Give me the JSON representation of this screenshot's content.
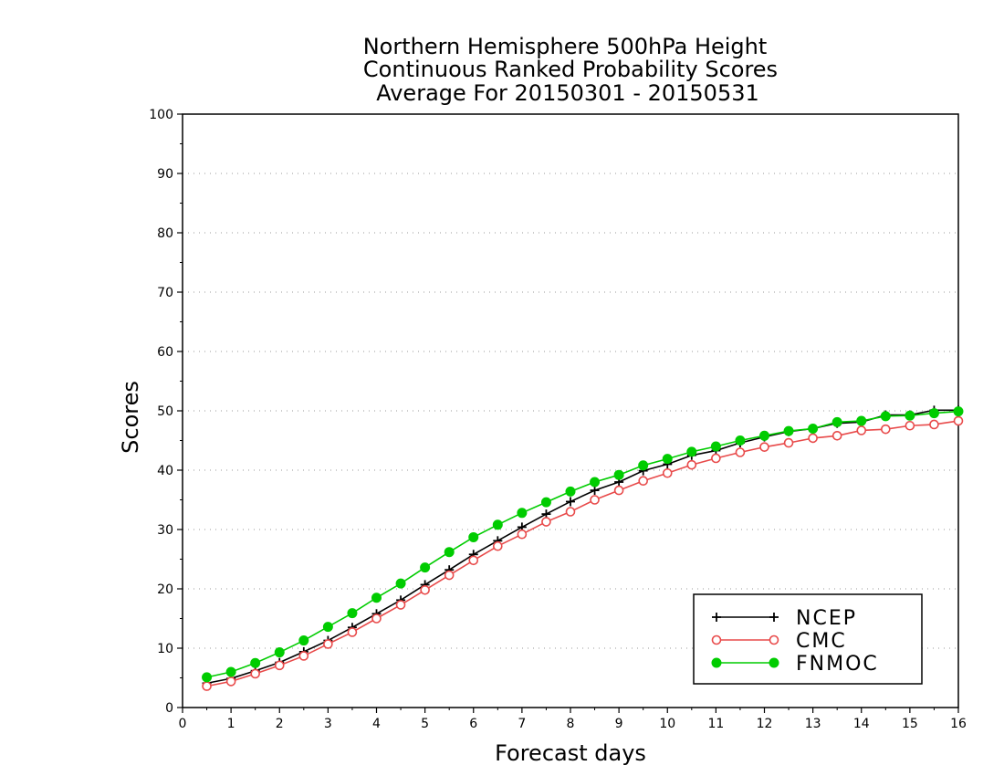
{
  "chart_data": {
    "type": "line",
    "title": [
      "Northern Hemisphere 500hPa Height",
      "Continuous Ranked Probability Scores",
      "Average For 20150301 - 20150531"
    ],
    "xlabel": "Forecast days",
    "ylabel": "Scores",
    "xlim": [
      0,
      16
    ],
    "ylim": [
      0,
      100
    ],
    "xticks": [
      "0",
      "1",
      "2",
      "3",
      "4",
      "5",
      "6",
      "7",
      "8",
      "9",
      "10",
      "11",
      "12",
      "13",
      "14",
      "15",
      "16"
    ],
    "yticks": [
      "0",
      "10",
      "20",
      "30",
      "40",
      "50",
      "60",
      "70",
      "80",
      "90",
      "100"
    ],
    "grid": true,
    "legend_position": "bottom-right",
    "x": [
      0.5,
      1,
      1.5,
      2,
      2.5,
      3,
      3.5,
      4,
      4.5,
      5,
      5.5,
      6,
      6.5,
      7,
      7.5,
      8,
      8.5,
      9,
      9.5,
      10,
      10.5,
      11,
      11.5,
      12,
      12.5,
      13,
      13.5,
      14,
      14.5,
      15,
      15.5,
      16
    ],
    "series": [
      {
        "name": "NCEP",
        "color": "#000000",
        "marker": "plus",
        "values": [
          4.1,
          4.9,
          6.2,
          7.6,
          9.4,
          11.3,
          13.5,
          15.8,
          18.1,
          20.7,
          23.2,
          25.8,
          28.1,
          30.4,
          32.6,
          34.7,
          36.6,
          38.0,
          39.9,
          41.0,
          42.5,
          43.3,
          44.6,
          45.6,
          46.5,
          47.0,
          47.9,
          48.1,
          49.3,
          49.3,
          50.1,
          50.1
        ]
      },
      {
        "name": "CMC",
        "color": "#e84a4a",
        "marker": "open-circle",
        "values": [
          3.6,
          4.4,
          5.7,
          7.1,
          8.7,
          10.7,
          12.7,
          15.0,
          17.3,
          19.8,
          22.3,
          24.8,
          27.2,
          29.2,
          31.3,
          33.0,
          35.0,
          36.6,
          38.2,
          39.5,
          40.9,
          42.0,
          43.0,
          43.9,
          44.6,
          45.4,
          45.8,
          46.7,
          46.9,
          47.5,
          47.7,
          48.3
        ]
      },
      {
        "name": "FNMOC",
        "color": "#00cc00",
        "marker": "filled-circle",
        "values": [
          5.1,
          6.0,
          7.5,
          9.3,
          11.3,
          13.6,
          15.9,
          18.5,
          20.9,
          23.6,
          26.2,
          28.7,
          30.8,
          32.8,
          34.6,
          36.4,
          38.0,
          39.2,
          40.8,
          41.9,
          43.1,
          44.0,
          45.0,
          45.8,
          46.6,
          47.0,
          48.1,
          48.3,
          49.1,
          49.2,
          49.6,
          49.9
        ]
      }
    ]
  }
}
